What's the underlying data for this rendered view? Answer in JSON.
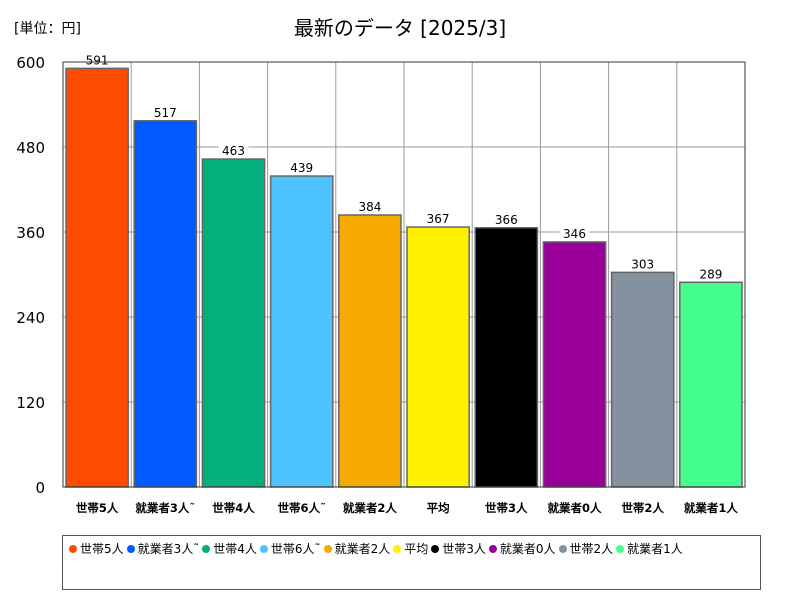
{
  "unit_label": "[単位：円]",
  "chart_data": {
    "type": "bar",
    "title": "最新のデータ [2025/3]",
    "xlabel": "",
    "ylabel": "",
    "ylim": [
      0,
      600
    ],
    "yticks": [
      0,
      120,
      240,
      360,
      480,
      600
    ],
    "categories": [
      "世帯5人",
      "就業者3人˜",
      "世帯4人",
      "世帯6人˜",
      "就業者2人",
      "平均",
      "世帯3人",
      "就業者0人",
      "世帯2人",
      "就業者1人"
    ],
    "values": [
      591,
      517,
      463,
      439,
      384,
      367,
      366,
      346,
      303,
      289
    ],
    "colors": [
      "#ff4b00",
      "#005aff",
      "#03af7a",
      "#4dc4ff",
      "#f6aa00",
      "#fff100",
      "#000000",
      "#990099",
      "#84919e",
      "#44ff8f"
    ],
    "grid": true,
    "legend_position": "bottom"
  }
}
